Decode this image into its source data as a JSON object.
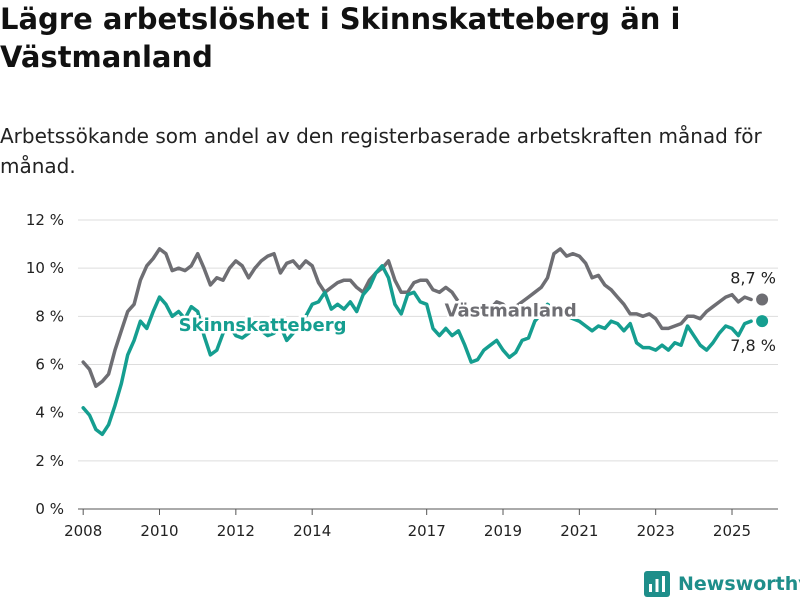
{
  "header": {
    "title": "Lägre arbetslöshet i Skinnskatteberg än i Västmanland",
    "subtitle": "Arbetssökande som andel av den registerbaserade arbetskraften månad för månad."
  },
  "brand": {
    "name": "Newsworthy",
    "icon": "newsworthy-logo-icon",
    "color": "#1e8e8a"
  },
  "chart_data": {
    "type": "line",
    "title": "Lägre arbetslöshet i Skinnskatteberg än i Västmanland",
    "subtitle": "Arbetssökande som andel av den registerbaserade arbetskraften månad för månad.",
    "xlabel": "",
    "ylabel": "",
    "x_ticks": [
      "2008",
      "2010",
      "2012",
      "2014",
      "2017",
      "2019",
      "2021",
      "2023",
      "2025"
    ],
    "y_ticks": [
      "0 %",
      "2 %",
      "4 %",
      "6 %",
      "8 %",
      "10 %",
      "12 %"
    ],
    "ylim": [
      0,
      12
    ],
    "grid": "horizontal",
    "legend": "inline labels",
    "end_labels": {
      "vastmanland": "8,7 %",
      "skinnskatteberg": "7,8 %"
    },
    "series": [
      {
        "name": "Västmanland",
        "color": "#6e6e73",
        "points": [
          [
            "2008-01",
            6.1
          ],
          [
            "2008-03",
            5.8
          ],
          [
            "2008-05",
            5.1
          ],
          [
            "2008-07",
            5.3
          ],
          [
            "2008-09",
            5.6
          ],
          [
            "2008-11",
            6.6
          ],
          [
            "2009-01",
            7.4
          ],
          [
            "2009-03",
            8.2
          ],
          [
            "2009-05",
            8.5
          ],
          [
            "2009-07",
            9.5
          ],
          [
            "2009-09",
            10.1
          ],
          [
            "2009-11",
            10.4
          ],
          [
            "2010-01",
            10.8
          ],
          [
            "2010-03",
            10.6
          ],
          [
            "2010-05",
            9.9
          ],
          [
            "2010-07",
            10.0
          ],
          [
            "2010-09",
            9.9
          ],
          [
            "2010-11",
            10.1
          ],
          [
            "2011-01",
            10.6
          ],
          [
            "2011-03",
            10.0
          ],
          [
            "2011-05",
            9.3
          ],
          [
            "2011-07",
            9.6
          ],
          [
            "2011-09",
            9.5
          ],
          [
            "2011-11",
            10.0
          ],
          [
            "2012-01",
            10.3
          ],
          [
            "2012-03",
            10.1
          ],
          [
            "2012-05",
            9.6
          ],
          [
            "2012-07",
            10.0
          ],
          [
            "2012-09",
            10.3
          ],
          [
            "2012-11",
            10.5
          ],
          [
            "2013-01",
            10.6
          ],
          [
            "2013-03",
            9.8
          ],
          [
            "2013-05",
            10.2
          ],
          [
            "2013-07",
            10.3
          ],
          [
            "2013-09",
            10.0
          ],
          [
            "2013-11",
            10.3
          ],
          [
            "2014-01",
            10.1
          ],
          [
            "2014-03",
            9.4
          ],
          [
            "2014-05",
            9.0
          ],
          [
            "2014-07",
            9.2
          ],
          [
            "2014-09",
            9.4
          ],
          [
            "2014-11",
            9.5
          ],
          [
            "2015-01",
            9.5
          ],
          [
            "2015-03",
            9.2
          ],
          [
            "2015-05",
            9.0
          ],
          [
            "2015-07",
            9.5
          ],
          [
            "2015-09",
            9.8
          ],
          [
            "2015-11",
            10.0
          ],
          [
            "2016-01",
            10.3
          ],
          [
            "2016-03",
            9.5
          ],
          [
            "2016-05",
            9.0
          ],
          [
            "2016-07",
            9.0
          ],
          [
            "2016-09",
            9.4
          ],
          [
            "2016-11",
            9.5
          ],
          [
            "2017-01",
            9.5
          ],
          [
            "2017-03",
            9.1
          ],
          [
            "2017-05",
            9.0
          ],
          [
            "2017-07",
            9.2
          ],
          [
            "2017-09",
            9.0
          ],
          [
            "2017-11",
            8.6
          ],
          [
            "2018-01",
            8.4
          ],
          [
            "2018-03",
            8.2
          ],
          [
            "2018-05",
            8.4
          ],
          [
            "2018-07",
            8.5
          ],
          [
            "2018-09",
            8.3
          ],
          [
            "2018-11",
            8.6
          ],
          [
            "2019-01",
            8.5
          ],
          [
            "2019-03",
            8.2
          ],
          [
            "2019-05",
            8.4
          ],
          [
            "2019-07",
            8.6
          ],
          [
            "2019-09",
            8.8
          ],
          [
            "2019-11",
            9.0
          ],
          [
            "2020-01",
            9.2
          ],
          [
            "2020-03",
            9.6
          ],
          [
            "2020-05",
            10.6
          ],
          [
            "2020-07",
            10.8
          ],
          [
            "2020-09",
            10.5
          ],
          [
            "2020-11",
            10.6
          ],
          [
            "2021-01",
            10.5
          ],
          [
            "2021-03",
            10.2
          ],
          [
            "2021-05",
            9.6
          ],
          [
            "2021-07",
            9.7
          ],
          [
            "2021-09",
            9.3
          ],
          [
            "2021-11",
            9.1
          ],
          [
            "2022-01",
            8.8
          ],
          [
            "2022-03",
            8.5
          ],
          [
            "2022-05",
            8.1
          ],
          [
            "2022-07",
            8.1
          ],
          [
            "2022-09",
            8.0
          ],
          [
            "2022-11",
            8.1
          ],
          [
            "2023-01",
            7.9
          ],
          [
            "2023-03",
            7.5
          ],
          [
            "2023-05",
            7.5
          ],
          [
            "2023-07",
            7.6
          ],
          [
            "2023-09",
            7.7
          ],
          [
            "2023-11",
            8.0
          ],
          [
            "2024-01",
            8.0
          ],
          [
            "2024-03",
            7.9
          ],
          [
            "2024-05",
            8.2
          ],
          [
            "2024-07",
            8.4
          ],
          [
            "2024-09",
            8.6
          ],
          [
            "2024-11",
            8.8
          ],
          [
            "2025-01",
            8.9
          ],
          [
            "2025-03",
            8.6
          ],
          [
            "2025-05",
            8.8
          ],
          [
            "2025-07",
            8.7
          ]
        ]
      },
      {
        "name": "Skinnskatteberg",
        "color": "#159e90",
        "points": [
          [
            "2008-01",
            4.2
          ],
          [
            "2008-03",
            3.9
          ],
          [
            "2008-05",
            3.3
          ],
          [
            "2008-07",
            3.1
          ],
          [
            "2008-09",
            3.5
          ],
          [
            "2008-11",
            4.3
          ],
          [
            "2009-01",
            5.2
          ],
          [
            "2009-03",
            6.4
          ],
          [
            "2009-05",
            7.0
          ],
          [
            "2009-07",
            7.8
          ],
          [
            "2009-09",
            7.5
          ],
          [
            "2009-11",
            8.2
          ],
          [
            "2010-01",
            8.8
          ],
          [
            "2010-03",
            8.5
          ],
          [
            "2010-05",
            8.0
          ],
          [
            "2010-07",
            8.2
          ],
          [
            "2010-09",
            7.9
          ],
          [
            "2010-11",
            8.4
          ],
          [
            "2011-01",
            8.2
          ],
          [
            "2011-03",
            7.2
          ],
          [
            "2011-05",
            6.4
          ],
          [
            "2011-07",
            6.6
          ],
          [
            "2011-09",
            7.3
          ],
          [
            "2011-11",
            7.6
          ],
          [
            "2012-01",
            7.2
          ],
          [
            "2012-03",
            7.1
          ],
          [
            "2012-05",
            7.3
          ],
          [
            "2012-07",
            7.5
          ],
          [
            "2012-09",
            7.4
          ],
          [
            "2012-11",
            7.2
          ],
          [
            "2013-01",
            7.3
          ],
          [
            "2013-03",
            7.6
          ],
          [
            "2013-05",
            7.0
          ],
          [
            "2013-07",
            7.3
          ],
          [
            "2013-09",
            7.6
          ],
          [
            "2013-11",
            8.0
          ],
          [
            "2014-01",
            8.5
          ],
          [
            "2014-03",
            8.6
          ],
          [
            "2014-05",
            9.0
          ],
          [
            "2014-07",
            8.3
          ],
          [
            "2014-09",
            8.5
          ],
          [
            "2014-11",
            8.3
          ],
          [
            "2015-01",
            8.6
          ],
          [
            "2015-03",
            8.2
          ],
          [
            "2015-05",
            8.9
          ],
          [
            "2015-07",
            9.2
          ],
          [
            "2015-09",
            9.8
          ],
          [
            "2015-11",
            10.1
          ],
          [
            "2016-01",
            9.6
          ],
          [
            "2016-03",
            8.5
          ],
          [
            "2016-05",
            8.1
          ],
          [
            "2016-07",
            8.9
          ],
          [
            "2016-09",
            9.0
          ],
          [
            "2016-11",
            8.6
          ],
          [
            "2017-01",
            8.5
          ],
          [
            "2017-03",
            7.5
          ],
          [
            "2017-05",
            7.2
          ],
          [
            "2017-07",
            7.5
          ],
          [
            "2017-09",
            7.2
          ],
          [
            "2017-11",
            7.4
          ],
          [
            "2018-01",
            6.8
          ],
          [
            "2018-03",
            6.1
          ],
          [
            "2018-05",
            6.2
          ],
          [
            "2018-07",
            6.6
          ],
          [
            "2018-09",
            6.8
          ],
          [
            "2018-11",
            7.0
          ],
          [
            "2019-01",
            6.6
          ],
          [
            "2019-03",
            6.3
          ],
          [
            "2019-05",
            6.5
          ],
          [
            "2019-07",
            7.0
          ],
          [
            "2019-09",
            7.1
          ],
          [
            "2019-11",
            7.8
          ],
          [
            "2020-01",
            8.1
          ],
          [
            "2020-03",
            8.5
          ],
          [
            "2020-05",
            8.3
          ],
          [
            "2020-07",
            8.1
          ],
          [
            "2020-09",
            8.0
          ],
          [
            "2020-11",
            7.9
          ],
          [
            "2021-01",
            7.8
          ],
          [
            "2021-03",
            7.6
          ],
          [
            "2021-05",
            7.4
          ],
          [
            "2021-07",
            7.6
          ],
          [
            "2021-09",
            7.5
          ],
          [
            "2021-11",
            7.8
          ],
          [
            "2022-01",
            7.7
          ],
          [
            "2022-03",
            7.4
          ],
          [
            "2022-05",
            7.7
          ],
          [
            "2022-07",
            6.9
          ],
          [
            "2022-09",
            6.7
          ],
          [
            "2022-11",
            6.7
          ],
          [
            "2023-01",
            6.6
          ],
          [
            "2023-03",
            6.8
          ],
          [
            "2023-05",
            6.6
          ],
          [
            "2023-07",
            6.9
          ],
          [
            "2023-09",
            6.8
          ],
          [
            "2023-11",
            7.6
          ],
          [
            "2024-01",
            7.2
          ],
          [
            "2024-03",
            6.8
          ],
          [
            "2024-05",
            6.6
          ],
          [
            "2024-07",
            6.9
          ],
          [
            "2024-09",
            7.3
          ],
          [
            "2024-11",
            7.6
          ],
          [
            "2025-01",
            7.5
          ],
          [
            "2025-03",
            7.2
          ],
          [
            "2025-05",
            7.7
          ],
          [
            "2025-07",
            7.8
          ]
        ]
      }
    ]
  }
}
